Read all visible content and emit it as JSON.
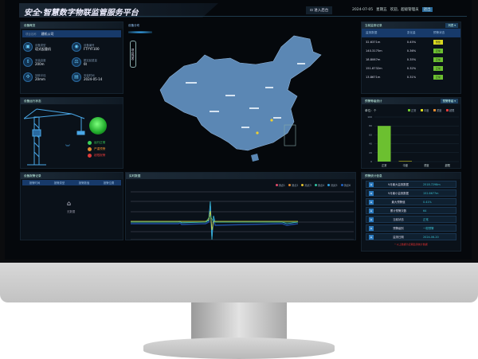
{
  "header": {
    "title": "安全·智慧数字物联监管服务平台",
    "enter_button": "进入后台",
    "date": "2024-07-05",
    "weekday": "星期五",
    "welcome": "欢迎，超级管理员",
    "logout": "退出"
  },
  "device_overview": {
    "title": "设备概览",
    "project_label": "项目名称",
    "project_value": "建机公司",
    "items": [
      {
        "icon": "crane-icon",
        "label": "设备类型",
        "value": "塔式起重机"
      },
      {
        "icon": "id-icon",
        "label": "设备编号",
        "value": "FTYYF100"
      },
      {
        "icon": "height-icon",
        "label": "安装高度",
        "value": "200m"
      },
      {
        "icon": "weight-icon",
        "label": "额定起重量",
        "value": "6t"
      },
      {
        "icon": "fan-icon",
        "label": "回转半径",
        "value": "20mm"
      },
      {
        "icon": "calendar-icon",
        "label": "安装时间",
        "value": "2024-05-14"
      }
    ]
  },
  "device_status": {
    "title": "设备运行状态",
    "lamp_color": "#35d04a",
    "legend": [
      {
        "label": "运行正常",
        "color": "#3bd05a"
      },
      {
        "label": "严重预警",
        "color": "#e08a30"
      },
      {
        "label": "超限报警",
        "color": "#e03a3a"
      }
    ]
  },
  "alarm_panel": {
    "title": "设备报警记录",
    "columns": [
      "报警时间",
      "报警类型",
      "报警数值",
      "报警位置"
    ],
    "empty_text": "无数据",
    "empty_icon": "inbox-icon"
  },
  "map": {
    "title": "设备分布",
    "side_button": "项目列表"
  },
  "realtime": {
    "title": "实时数据",
    "legend": [
      {
        "label": "测点1",
        "color": "#e04a6a"
      },
      {
        "label": "测点2",
        "color": "#e08a30"
      },
      {
        "label": "测点3",
        "color": "#e0c030"
      },
      {
        "label": "测点4",
        "color": "#30c0a0"
      },
      {
        "label": "测点5",
        "color": "#30a0e0"
      },
      {
        "label": "测点6",
        "color": "#2060c0"
      }
    ]
  },
  "monitor_table": {
    "title": "当前监测记录",
    "dropdown": "列表",
    "columns": [
      "监测数据",
      "变化量",
      "预警状态"
    ],
    "rows": [
      {
        "value": "32.6371m",
        "change": "0.45%",
        "status": "预警",
        "color": "#d8d820"
      },
      {
        "value": "140.3175m",
        "change": "0.36%",
        "status": "正常",
        "color": "#6cc030"
      },
      {
        "value": "18.8067m",
        "change": "0.35%",
        "status": "正常",
        "color": "#6cc030"
      },
      {
        "value": "151.8732m",
        "change": "0.32%",
        "status": "正常",
        "color": "#6cc030"
      },
      {
        "value": "13.8671m",
        "change": "0.31%",
        "status": "正常",
        "color": "#6cc030"
      }
    ]
  },
  "chart_data": {
    "type": "bar",
    "title": "预警等级统计",
    "dropdown": "预警等级",
    "ylabel": "单位：个",
    "categories": [
      "正常",
      "中度",
      "重度",
      "超限"
    ],
    "values": [
      80,
      1,
      0,
      0
    ],
    "ylim": [
      0,
      100
    ],
    "yticks": [
      0,
      20,
      40,
      60,
      80,
      100
    ],
    "legend": [
      {
        "label": "正常",
        "color": "#6cc030"
      },
      {
        "label": "中度",
        "color": "#d8d820"
      },
      {
        "label": "重度",
        "color": "#e08a30"
      },
      {
        "label": "超限",
        "color": "#e03a3a"
      }
    ],
    "grid": true
  },
  "stats": {
    "title": "预警统计信息",
    "items": [
      {
        "label": "9月最大监测数据",
        "value": "2518.7298m"
      },
      {
        "label": "9月最小监测数据",
        "value": "152.8677m"
      },
      {
        "label": "最大预警值",
        "value": "0.41%"
      },
      {
        "label": "累计预警次数",
        "value": "64"
      },
      {
        "label": "当前状态",
        "value": "正常"
      },
      {
        "label": "预警级别",
        "value": "一般预警"
      },
      {
        "label": "监测日期",
        "value": "2024-06-20"
      }
    ],
    "footer": "* 以上数据为近期监测统计数据"
  }
}
